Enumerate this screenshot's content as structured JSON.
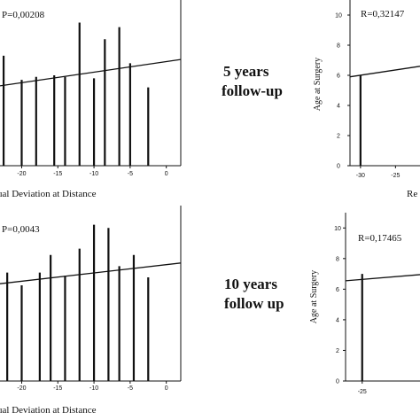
{
  "mid_labels": {
    "five": [
      "5 years",
      "follow-up"
    ],
    "ten": [
      "10 years",
      "follow up"
    ]
  },
  "chart_data": [
    {
      "id": "left-top",
      "type": "bar",
      "annotation": "P=0,00208",
      "xlabel_visible": "ual Deviation at Distance",
      "ylabel_visible": "",
      "x_ticks": [
        "-20",
        "-15",
        "-10",
        "-5",
        "0"
      ],
      "y_ticks": [],
      "bars": [
        {
          "x": -22.5,
          "y": 7.3
        },
        {
          "x": -20,
          "y": 5.7
        },
        {
          "x": -18,
          "y": 5.9
        },
        {
          "x": -15.5,
          "y": 6.0
        },
        {
          "x": -14,
          "y": 5.9
        },
        {
          "x": -12,
          "y": 9.5
        },
        {
          "x": -10,
          "y": 5.8
        },
        {
          "x": -8.5,
          "y": 8.4
        },
        {
          "x": -6.5,
          "y": 9.2
        },
        {
          "x": -5,
          "y": 6.8
        },
        {
          "x": -2.5,
          "y": 5.2
        }
      ],
      "regression": {
        "x0": -23,
        "y0": 5.3,
        "x1": 2,
        "y1": 7.05
      },
      "xlim": [
        -23,
        2
      ],
      "ylim": [
        0,
        11
      ]
    },
    {
      "id": "right-top",
      "type": "bar",
      "annotation": "R=0,32147",
      "xlabel_visible": "Re",
      "ylabel_visible": "Age at Surgery",
      "x_ticks": [
        "-30",
        "-25"
      ],
      "y_ticks": [
        "0",
        "2",
        "4",
        "6",
        "8",
        "10"
      ],
      "bars": [
        {
          "x": -30,
          "y": 6.0
        }
      ],
      "regression": {
        "x0": -31.5,
        "y0": 5.9,
        "x1": -21.5,
        "y1": 6.6
      },
      "xlim": [
        -31.5,
        -21.5
      ],
      "ylim": [
        0,
        11
      ]
    },
    {
      "id": "left-bottom",
      "type": "bar",
      "annotation": "P=0,0043",
      "xlabel_visible": "ual Deviation at Distance",
      "ylabel_visible": "",
      "x_ticks": [
        "-20",
        "-15",
        "-10",
        "-5",
        "0"
      ],
      "y_ticks": [],
      "bars": [
        {
          "x": -22,
          "y": 6.8
        },
        {
          "x": -20,
          "y": 6.0
        },
        {
          "x": -17.5,
          "y": 6.8
        },
        {
          "x": -16,
          "y": 7.9
        },
        {
          "x": -14,
          "y": 6.6
        },
        {
          "x": -12,
          "y": 8.3
        },
        {
          "x": -10,
          "y": 9.8
        },
        {
          "x": -8,
          "y": 9.6
        },
        {
          "x": -6.5,
          "y": 7.2
        },
        {
          "x": -4.5,
          "y": 7.9
        },
        {
          "x": -2.5,
          "y": 6.5
        }
      ],
      "regression": {
        "x0": -23,
        "y0": 6.1,
        "x1": 2,
        "y1": 7.4
      },
      "xlim": [
        -23,
        2
      ],
      "ylim": [
        0,
        11
      ]
    },
    {
      "id": "right-bottom",
      "type": "bar",
      "annotation": "R=0,17465",
      "xlabel_visible": "",
      "ylabel_visible": "Age at Surgery",
      "x_ticks": [
        "-25"
      ],
      "y_ticks": [
        "0",
        "2",
        "4",
        "6",
        "8",
        "10"
      ],
      "bars": [
        {
          "x": -25,
          "y": 7.0
        }
      ],
      "regression": {
        "x0": -27.3,
        "y0": 6.55,
        "x1": -17,
        "y1": 6.95
      },
      "xlim": [
        -27.3,
        -17
      ],
      "ylim": [
        0,
        11
      ]
    }
  ]
}
